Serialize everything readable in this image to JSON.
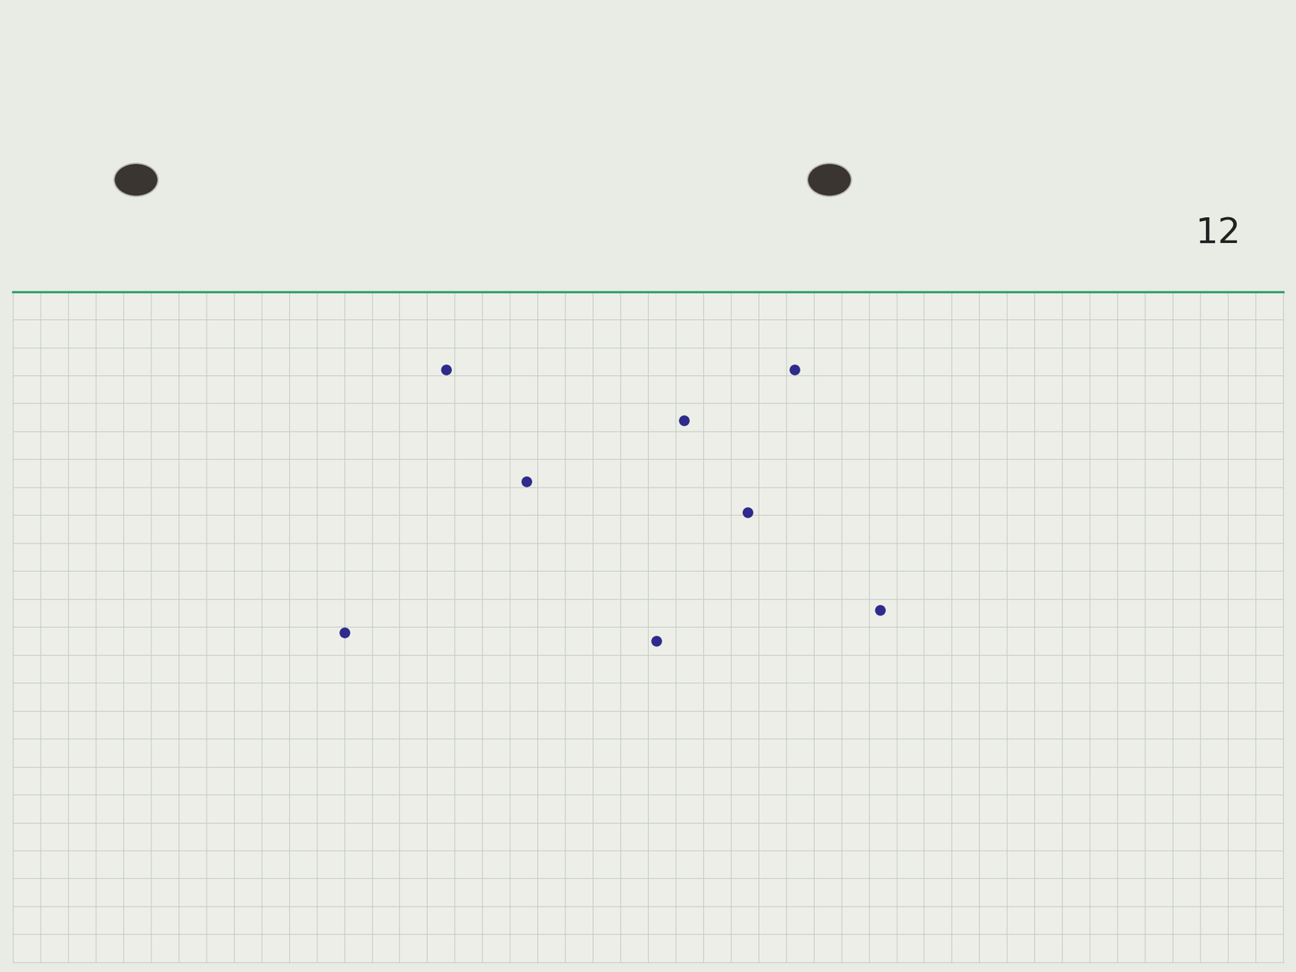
{
  "chart_data": {
    "type": "scatter",
    "x": [
      15.7,
      28.3,
      24.3,
      18.6,
      26.6,
      31.4,
      12.0,
      23.3
    ],
    "values": [
      21.2,
      21.2,
      19.4,
      17.2,
      16.1,
      12.6,
      11.8,
      11.5
    ],
    "color": "#2e2b8c",
    "marker": "o",
    "xlim": [
      0,
      46
    ],
    "ylim": [
      0,
      24
    ],
    "xticks": [
      0,
      1,
      2,
      3,
      4,
      5,
      6,
      7,
      8,
      9,
      10,
      11,
      12,
      13,
      14,
      15,
      16,
      17,
      18,
      19,
      20,
      21,
      22,
      23,
      24,
      25,
      26,
      27,
      28,
      29,
      30,
      31,
      32,
      33,
      34,
      35,
      36,
      37,
      38,
      39,
      40,
      41,
      42,
      43,
      44,
      45,
      46
    ],
    "yticks": [
      0,
      1,
      2,
      3,
      4,
      5,
      6,
      7,
      8,
      9,
      10,
      11,
      12,
      13,
      14,
      15,
      16,
      17,
      18,
      19,
      20,
      21,
      22,
      23,
      24
    ],
    "grid": true,
    "tick_labels": false,
    "annotations": [
      "12"
    ]
  }
}
